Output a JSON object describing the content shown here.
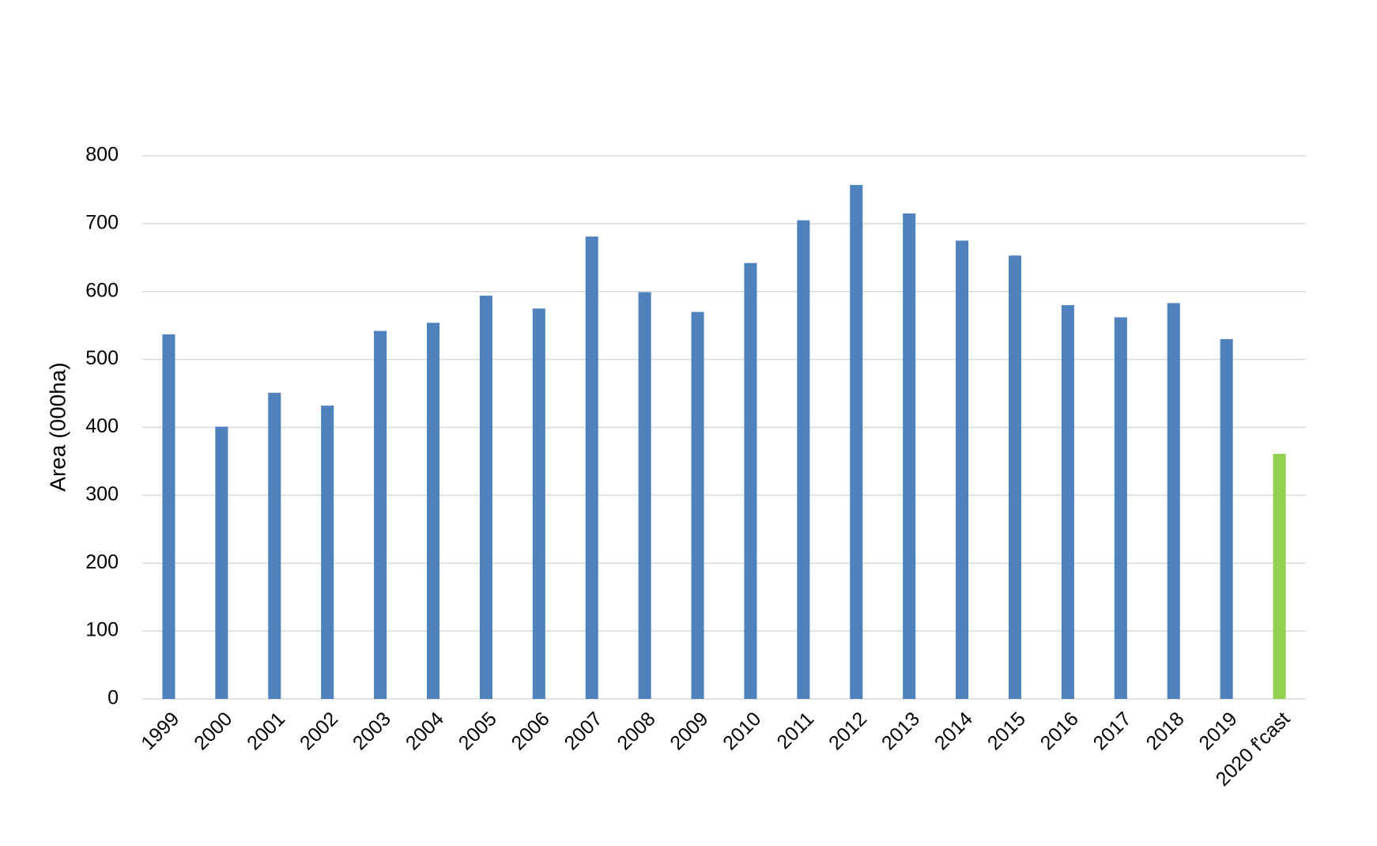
{
  "chart_data": {
    "type": "bar",
    "y_label": "Area (000ha)",
    "categories": [
      "1999",
      "2000",
      "2001",
      "2002",
      "2003",
      "2004",
      "2005",
      "2006",
      "2007",
      "2008",
      "2009",
      "2010",
      "2011",
      "2012",
      "2013",
      "2014",
      "2015",
      "2016",
      "2017",
      "2018",
      "2019",
      "2020 f'cast"
    ],
    "values": [
      537,
      401,
      451,
      432,
      542,
      554,
      594,
      575,
      681,
      599,
      570,
      642,
      705,
      757,
      715,
      675,
      653,
      580,
      562,
      583,
      530,
      361
    ],
    "colors": [
      "#4f81bd",
      "#4f81bd",
      "#4f81bd",
      "#4f81bd",
      "#4f81bd",
      "#4f81bd",
      "#4f81bd",
      "#4f81bd",
      "#4f81bd",
      "#4f81bd",
      "#4f81bd",
      "#4f81bd",
      "#4f81bd",
      "#4f81bd",
      "#4f81bd",
      "#4f81bd",
      "#4f81bd",
      "#4f81bd",
      "#4f81bd",
      "#4f81bd",
      "#4f81bd",
      "#92d050"
    ],
    "ylim": [
      0,
      800
    ],
    "yticks": [
      0,
      100,
      200,
      300,
      400,
      500,
      600,
      700,
      800
    ],
    "grid": true
  }
}
